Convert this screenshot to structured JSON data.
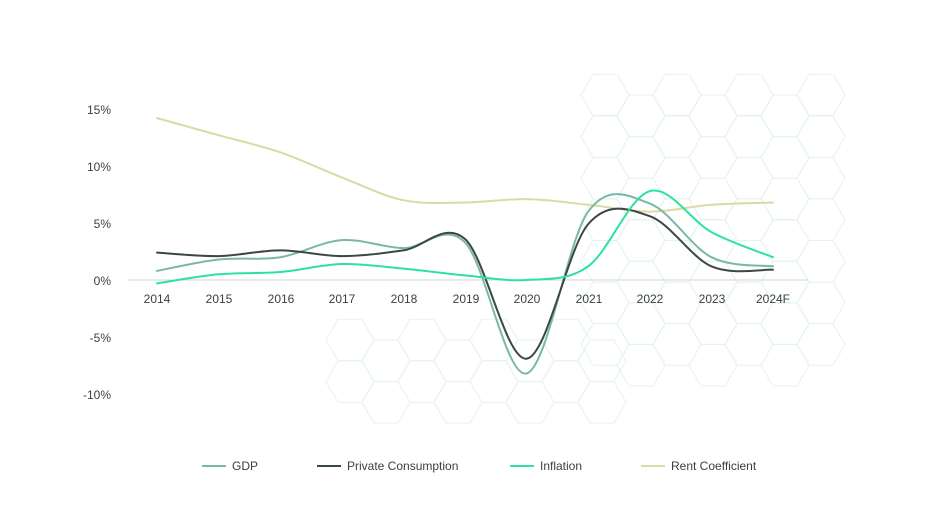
{
  "chart_data": {
    "type": "line",
    "categories": [
      "2014",
      "2015",
      "2016",
      "2017",
      "2018",
      "2019",
      "2020",
      "2021",
      "2022",
      "2023",
      "2024F"
    ],
    "y_ticks": [
      "15%",
      "10%",
      "5%",
      "0%",
      "-5%",
      "-10%"
    ],
    "y_tick_values": [
      15,
      10,
      5,
      0,
      -5,
      -10
    ],
    "ylim": [
      -10,
      15
    ],
    "grid": false,
    "legend_position": "bottom",
    "series": [
      {
        "name": "GDP",
        "color": "#7ab8a6",
        "values": [
          0.8,
          1.8,
          2.0,
          3.5,
          2.8,
          3.3,
          -8.2,
          6.0,
          6.7,
          2.0,
          1.2
        ]
      },
      {
        "name": "Private Consumption",
        "color": "#3b4649",
        "values": [
          2.4,
          2.1,
          2.6,
          2.1,
          2.6,
          3.6,
          -6.9,
          4.9,
          5.6,
          1.2,
          0.9
        ]
      },
      {
        "name": "Inflation",
        "color": "#2de39b",
        "values": [
          -0.3,
          0.5,
          0.7,
          1.4,
          1.0,
          0.4,
          0.0,
          1.2,
          7.8,
          4.2,
          2.0
        ]
      },
      {
        "name": "Rent Coefficient",
        "color": "#dcd9a3",
        "values": [
          14.2,
          12.7,
          11.2,
          9.0,
          7.0,
          6.8,
          7.1,
          6.6,
          6.0,
          6.6,
          6.8
        ]
      }
    ]
  }
}
